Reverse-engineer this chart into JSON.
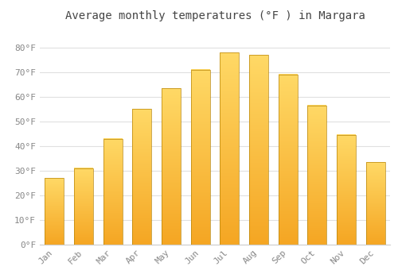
{
  "title": "Average monthly temperatures (°F ) in Margara",
  "months": [
    "Jan",
    "Feb",
    "Mar",
    "Apr",
    "May",
    "Jun",
    "Jul",
    "Aug",
    "Sep",
    "Oct",
    "Nov",
    "Dec"
  ],
  "values": [
    27,
    31,
    43,
    55,
    63.5,
    71,
    78,
    77,
    69,
    56.5,
    44.5,
    33.5
  ],
  "bar_color_bottom": "#F5A623",
  "bar_color_top": "#FFD966",
  "bar_edge_color": "#B8860B",
  "background_color": "#ffffff",
  "plot_bg_color": "#ffffff",
  "grid_color": "#e0e0e0",
  "title_color": "#444444",
  "tick_label_color": "#888888",
  "ylim": [
    0,
    88
  ],
  "yticks": [
    0,
    10,
    20,
    30,
    40,
    50,
    60,
    70,
    80
  ],
  "ytick_labels": [
    "0°F",
    "10°F",
    "20°F",
    "30°F",
    "40°F",
    "50°F",
    "60°F",
    "70°F",
    "80°F"
  ],
  "title_fontsize": 10,
  "tick_fontsize": 8
}
